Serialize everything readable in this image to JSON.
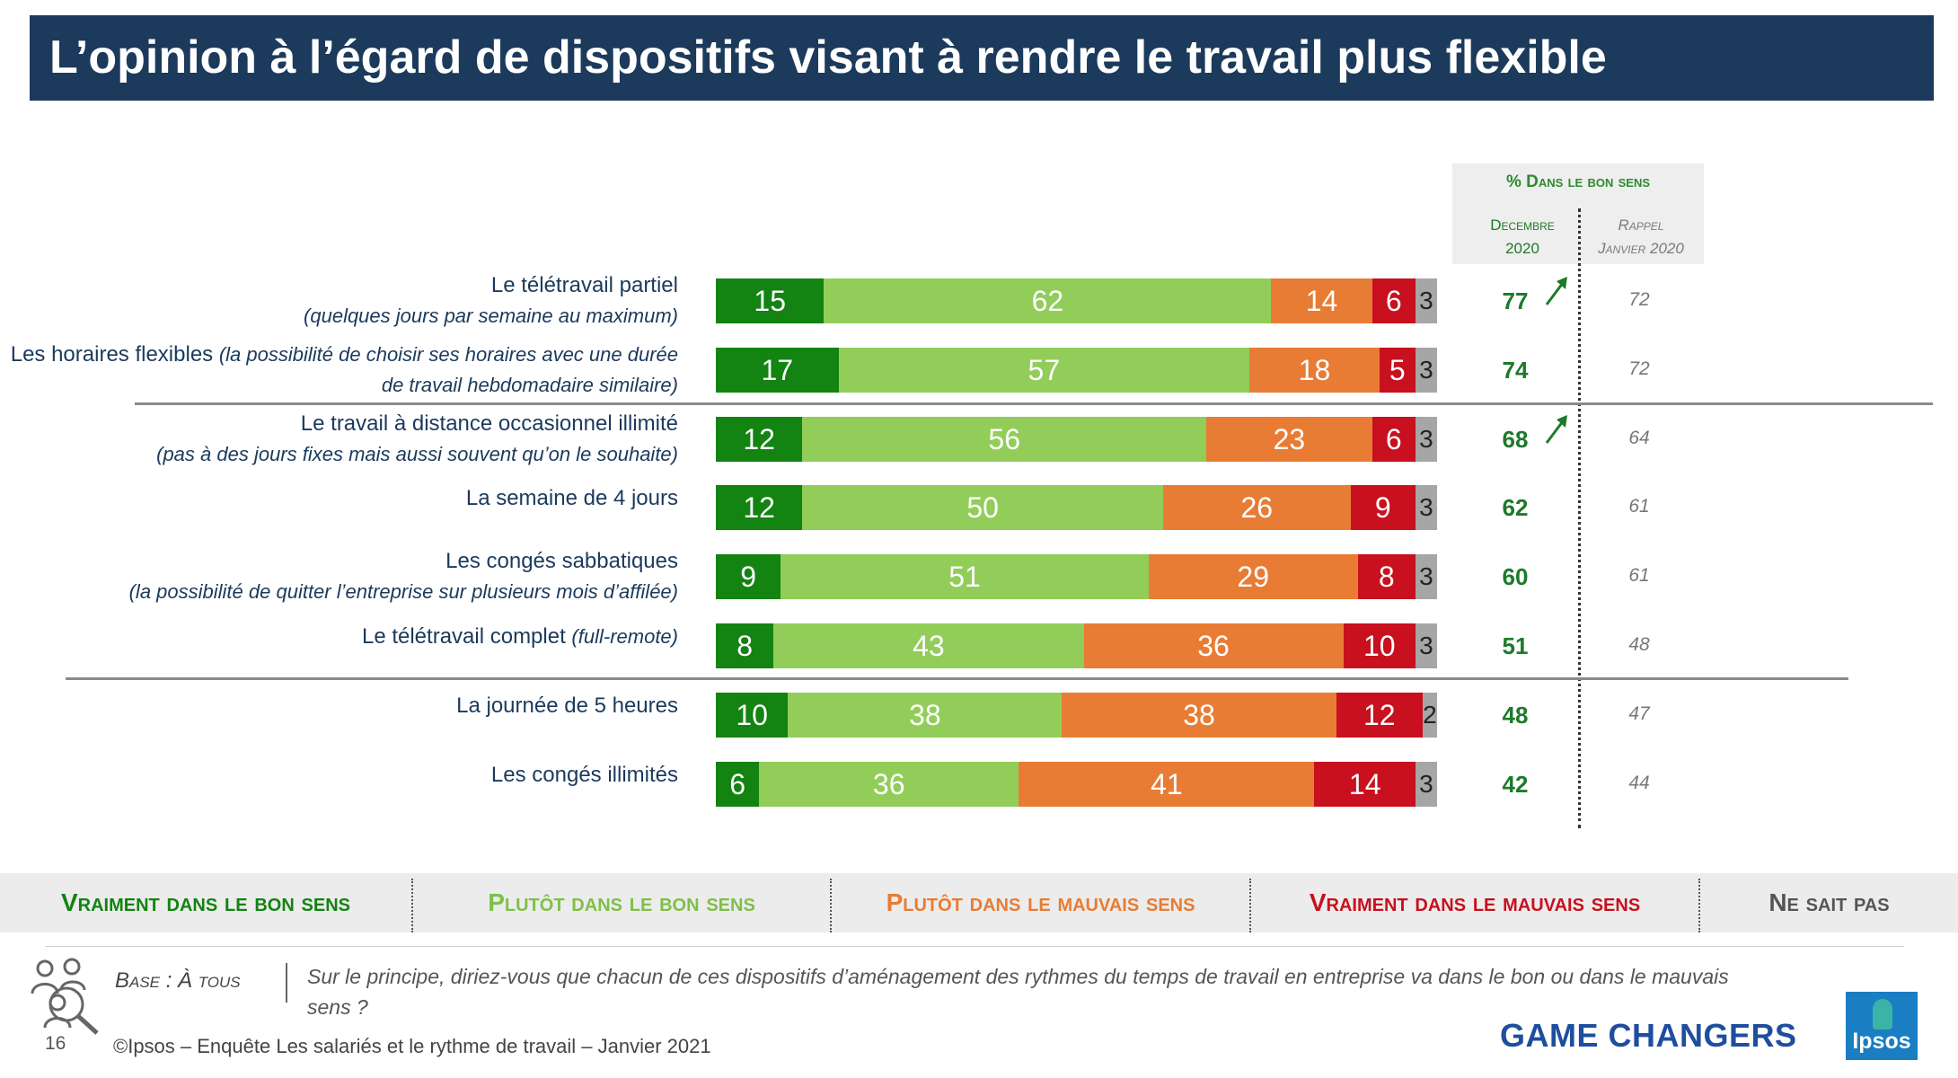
{
  "title": "L’opinion à l’égard de dispositifs visant à rendre le travail plus flexible",
  "kpi_header": {
    "title": "% Dans le bon sens",
    "col1_line1": "Decembre",
    "col1_line2": "2020",
    "col2_line1": "Rappel",
    "col2_line2": "Janvier 2020"
  },
  "colors": {
    "very_good": "#138312",
    "rather_good": "#92cd5a",
    "rather_bad": "#e87c34",
    "very_bad": "#c8101e",
    "dont_know": "#a6a6a6",
    "title_bg": "#1b3a5c",
    "label_text": "#1b3a5c"
  },
  "chart_data": {
    "type": "bar",
    "orientation": "horizontal",
    "stacked": true,
    "unit": "%",
    "categories": [
      {
        "main": "Le télétravail partiel",
        "sub": "(quelques jours par semaine au maximum)"
      },
      {
        "main": "Les horaires flexibles",
        "sub_inline": "(la possibilité de choisir ses horaires avec une durée",
        "sub": "de travail hebdomadaire similaire)"
      },
      {
        "main": "Le travail à distance occasionnel illimité",
        "sub": "(pas à des jours fixes mais aussi souvent qu’on le souhaite)"
      },
      {
        "main": "La semaine de 4 jours"
      },
      {
        "main": "Les congés sabbatiques",
        "sub": "(la possibilité de quitter l’entreprise sur plusieurs mois d’affilée)"
      },
      {
        "main": "Le télétravail complet",
        "sub_inline": "(full-remote)"
      },
      {
        "main": "La journée de 5 heures"
      },
      {
        "main": "Les congés illimités"
      }
    ],
    "series": [
      {
        "name": "Vraiment dans le bon sens",
        "color": "#138312",
        "values": [
          15,
          17,
          12,
          12,
          9,
          8,
          10,
          6
        ]
      },
      {
        "name": "Plutôt dans le bon sens",
        "color": "#92cd5a",
        "values": [
          62,
          57,
          56,
          50,
          51,
          43,
          38,
          36
        ]
      },
      {
        "name": "Plutôt dans le mauvais sens",
        "color": "#e87c34",
        "values": [
          14,
          18,
          23,
          26,
          29,
          36,
          38,
          41
        ]
      },
      {
        "name": "Vraiment dans le mauvais sens",
        "color": "#c8101e",
        "values": [
          6,
          5,
          6,
          9,
          8,
          10,
          12,
          14
        ]
      },
      {
        "name": "Ne sait pas",
        "color": "#a6a6a6",
        "values": [
          3,
          3,
          3,
          3,
          3,
          3,
          2,
          3
        ]
      }
    ],
    "good_sense_dec2020": [
      77,
      74,
      68,
      62,
      60,
      51,
      48,
      42
    ],
    "good_sense_jan2020": [
      72,
      72,
      64,
      61,
      61,
      48,
      47,
      44
    ],
    "trend_up": [
      true,
      false,
      true,
      false,
      false,
      false,
      false,
      false
    ],
    "xlim": [
      0,
      100
    ],
    "legend": "bottom"
  },
  "legend_labels": [
    "Vraiment dans le bon sens",
    "Plutôt dans le bon sens",
    "Plutôt dans le mauvais sens",
    "Vraiment dans le mauvais sens",
    "Ne sait pas"
  ],
  "footer": {
    "base": "Base : À tous",
    "question": "Sur le principe, diriez-vous que chacun de ces dispositifs d’aménagement des rythmes du temps de travail en entreprise va dans le bon ou dans le mauvais sens ?",
    "page": "16",
    "copyright": "©Ipsos – Enquête Les salariés et le rythme de travail – Janvier 2021",
    "brand": "GAME CHANGERS",
    "logo": "Ipsos"
  },
  "icons": {
    "people": "people-magnifier-icon",
    "arrow": "trend-up-arrow-icon"
  }
}
